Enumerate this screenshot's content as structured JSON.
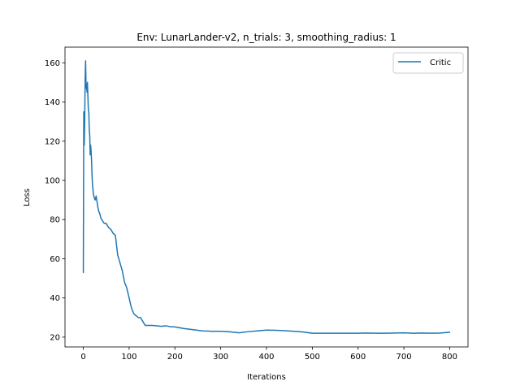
{
  "chart_data": {
    "type": "line",
    "title": "Env: LunarLander-v2, n_trials: 3, smoothing_radius: 1",
    "xlabel": "Iterations",
    "ylabel": "Loss",
    "xlim": [
      -40,
      840
    ],
    "ylim": [
      15,
      168
    ],
    "xticks": [
      0,
      100,
      200,
      300,
      400,
      500,
      600,
      700,
      800
    ],
    "yticks": [
      20,
      40,
      60,
      80,
      100,
      120,
      140,
      160
    ],
    "grid": false,
    "legend_position": "top-right",
    "series": [
      {
        "name": "Critic",
        "color": "#1f77b4",
        "x": [
          0,
          1,
          2,
          3,
          4,
          5,
          6,
          7,
          8,
          9,
          10,
          11,
          12,
          13,
          14,
          15,
          16,
          17,
          18,
          19,
          20,
          22,
          24,
          26,
          28,
          30,
          32,
          34,
          36,
          38,
          40,
          43,
          46,
          50,
          55,
          60,
          65,
          70,
          75,
          80,
          85,
          90,
          95,
          100,
          105,
          110,
          115,
          120,
          125,
          130,
          135,
          140,
          145,
          150,
          160,
          170,
          180,
          190,
          200,
          220,
          240,
          260,
          280,
          300,
          320,
          340,
          360,
          380,
          400,
          420,
          440,
          460,
          480,
          500,
          520,
          540,
          560,
          580,
          600,
          620,
          640,
          660,
          680,
          700,
          720,
          740,
          760,
          780,
          800
        ],
        "y": [
          53,
          135,
          118,
          130,
          152,
          161,
          147,
          149,
          145,
          150,
          143,
          136,
          135,
          126,
          123,
          113,
          118,
          115,
          110,
          103,
          98,
          93,
          91,
          90,
          92,
          89,
          86,
          84,
          83,
          81,
          80,
          79,
          78,
          78,
          76,
          75,
          73,
          72,
          62,
          58,
          54,
          48,
          45,
          40,
          35,
          32,
          31,
          30,
          30,
          28,
          26,
          26,
          26,
          26,
          25.8,
          25.5,
          25.8,
          25.3,
          25.2,
          24.4,
          23.8,
          23.2,
          23,
          23,
          22.7,
          22.2,
          22.8,
          23.2,
          23.6,
          23.5,
          23.3,
          23,
          22.6,
          22,
          22,
          22,
          22,
          22,
          22,
          22.1,
          22,
          22,
          22.1,
          22.2,
          22,
          22.1,
          22,
          22.1,
          22.5
        ]
      }
    ]
  }
}
